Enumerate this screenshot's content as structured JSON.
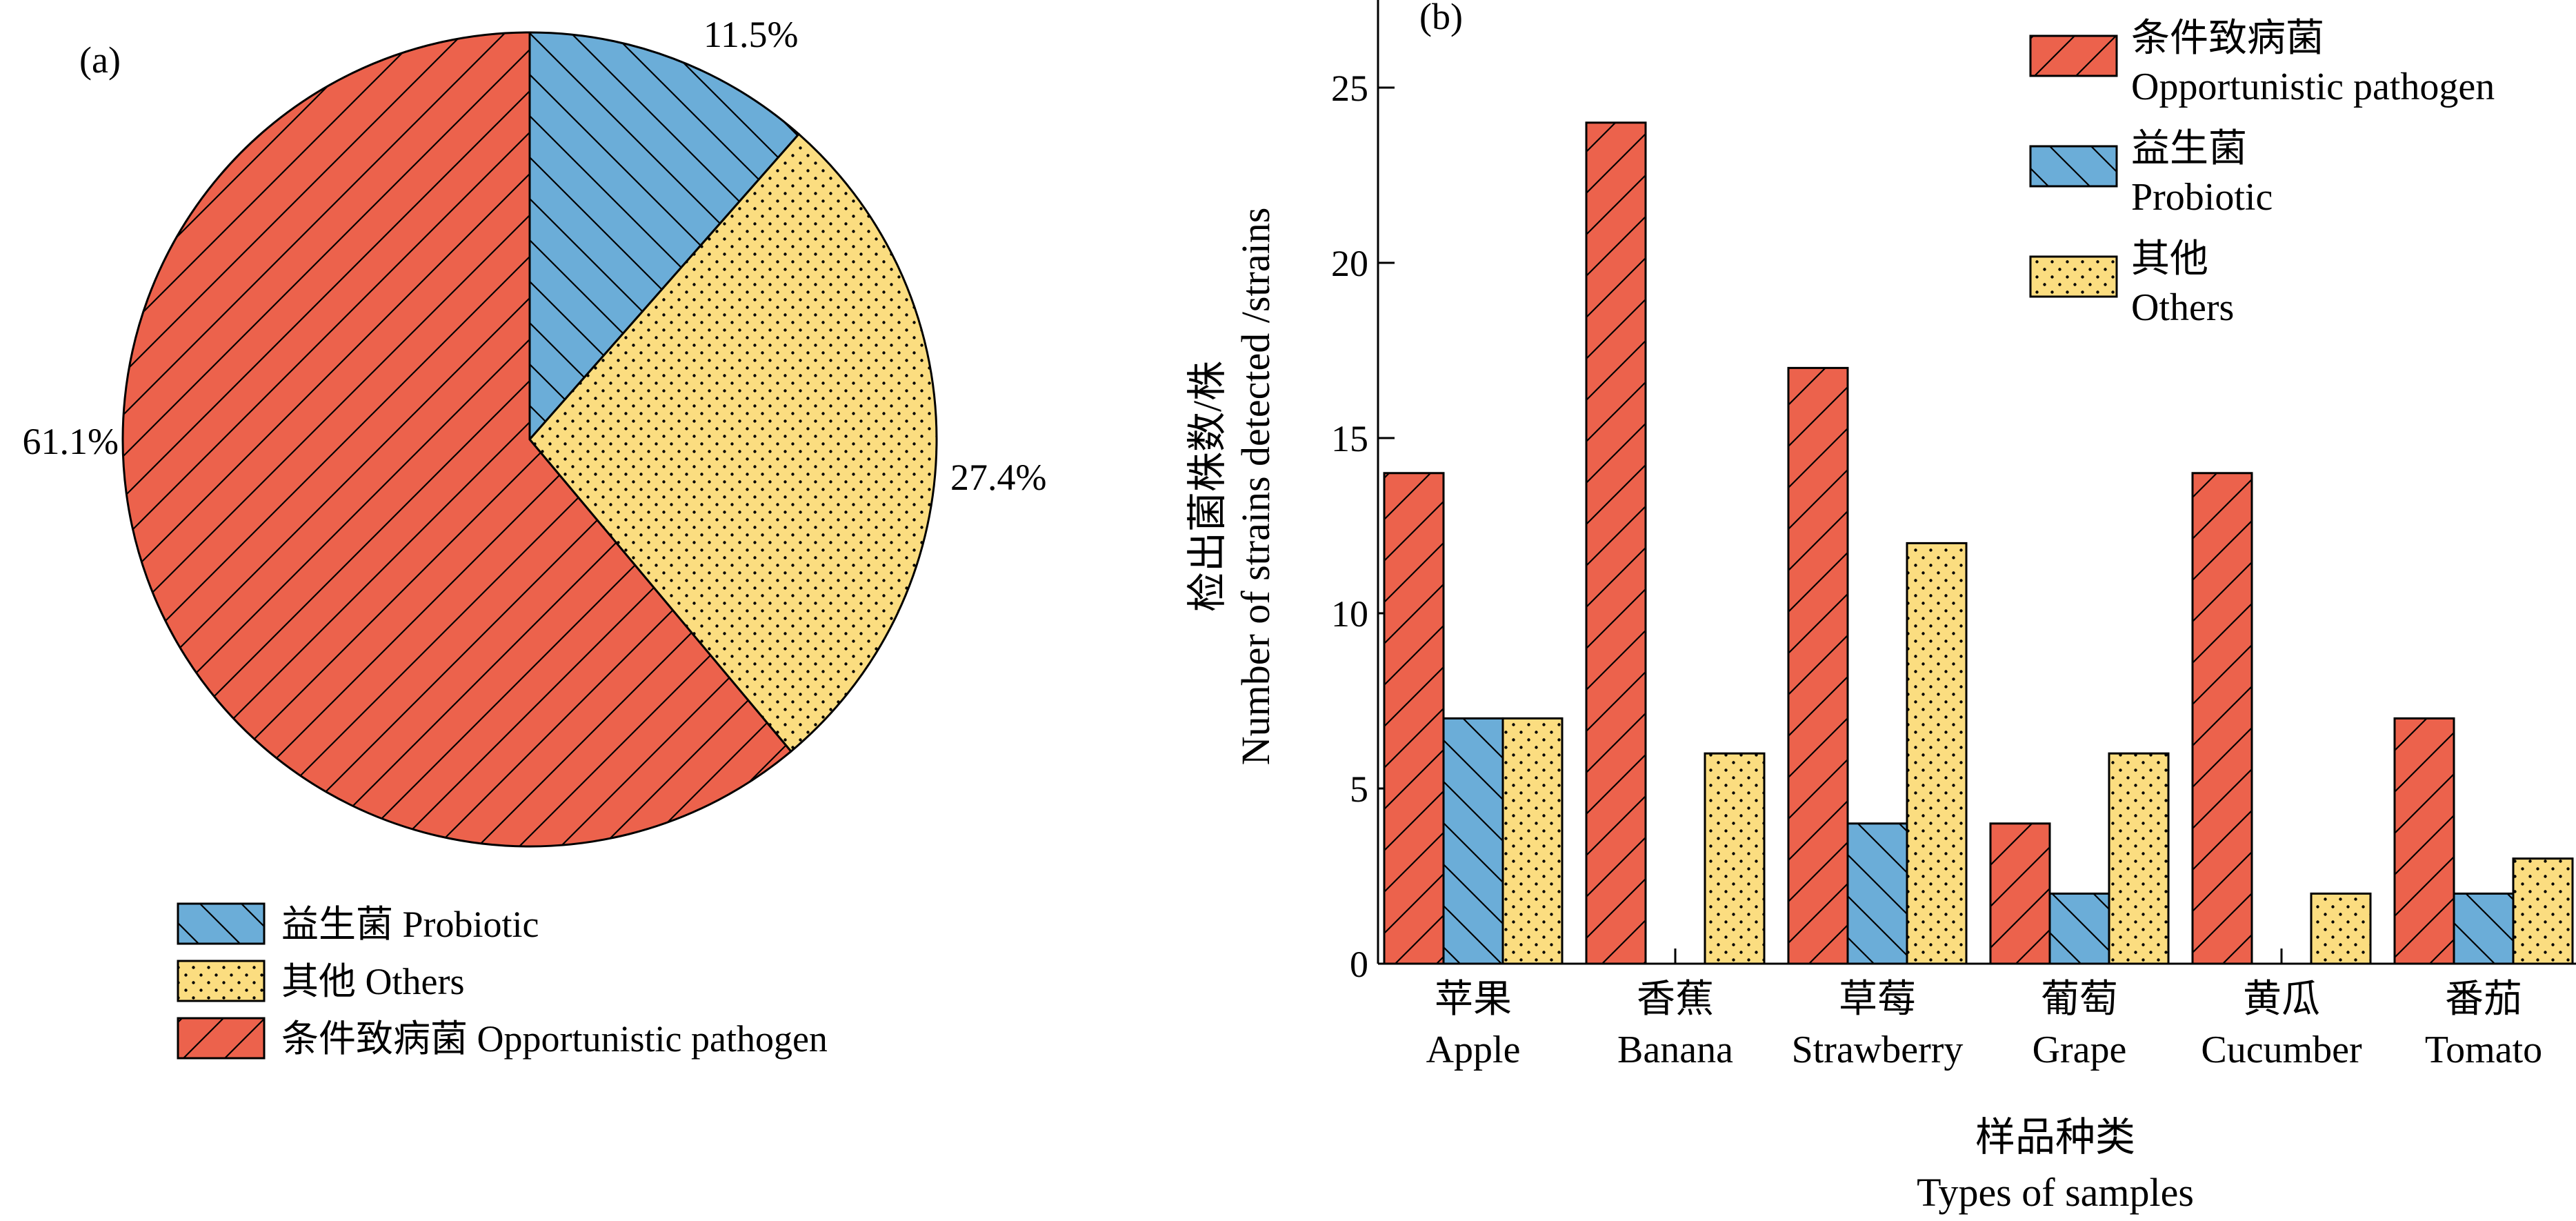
{
  "colors": {
    "pathogen": "#EC624C",
    "probiotic": "#6BADD8",
    "others": "#FBDD80",
    "edge": "#000000"
  },
  "chart_data": [
    {
      "type": "pie",
      "panel_label": "(a)",
      "slices": [
        {
          "key": "probiotic",
          "value": 11.5,
          "label": "11.5%",
          "legend": "益生菌 Probiotic",
          "pattern": "backslash"
        },
        {
          "key": "others",
          "value": 27.4,
          "label": "27.4%",
          "legend": "其他 Others",
          "pattern": "dots"
        },
        {
          "key": "pathogen",
          "value": 61.1,
          "label": "61.1%",
          "legend": "条件致病菌 Opportunistic pathogen",
          "pattern": "slash"
        }
      ],
      "legend_placement": "bottom"
    },
    {
      "type": "bar",
      "panel_label": "(b)",
      "categories": [
        {
          "zh": "苹果",
          "en": "Apple"
        },
        {
          "zh": "香蕉",
          "en": "Banana"
        },
        {
          "zh": "草莓",
          "en": "Strawberry"
        },
        {
          "zh": "葡萄",
          "en": "Grape"
        },
        {
          "zh": "黄瓜",
          "en": "Cucumber"
        },
        {
          "zh": "番茄",
          "en": "Tomato"
        }
      ],
      "series": [
        {
          "key": "pathogen",
          "name_zh": "条件致病菌",
          "name_en": "Opportunistic pathogen",
          "pattern": "slash",
          "values": [
            14,
            24,
            17,
            4,
            14,
            7
          ]
        },
        {
          "key": "probiotic",
          "name_zh": "益生菌",
          "name_en": "Probiotic",
          "pattern": "backslash",
          "values": [
            7,
            0,
            4,
            2,
            0,
            2
          ]
        },
        {
          "key": "others",
          "name_zh": "其他",
          "name_en": "Others",
          "pattern": "dots",
          "values": [
            7,
            6,
            12,
            6,
            2,
            3
          ]
        }
      ],
      "ylabel_zh": "检出菌株数/株",
      "ylabel_en": "Number of strains detected /strains",
      "xlabel_zh": "样品种类",
      "xlabel_en": "Types of samples",
      "yticks": [
        0,
        5,
        10,
        15,
        20,
        25
      ],
      "ylim": [
        0,
        27.5
      ],
      "grid": false,
      "legend_placement": "top-right"
    }
  ]
}
